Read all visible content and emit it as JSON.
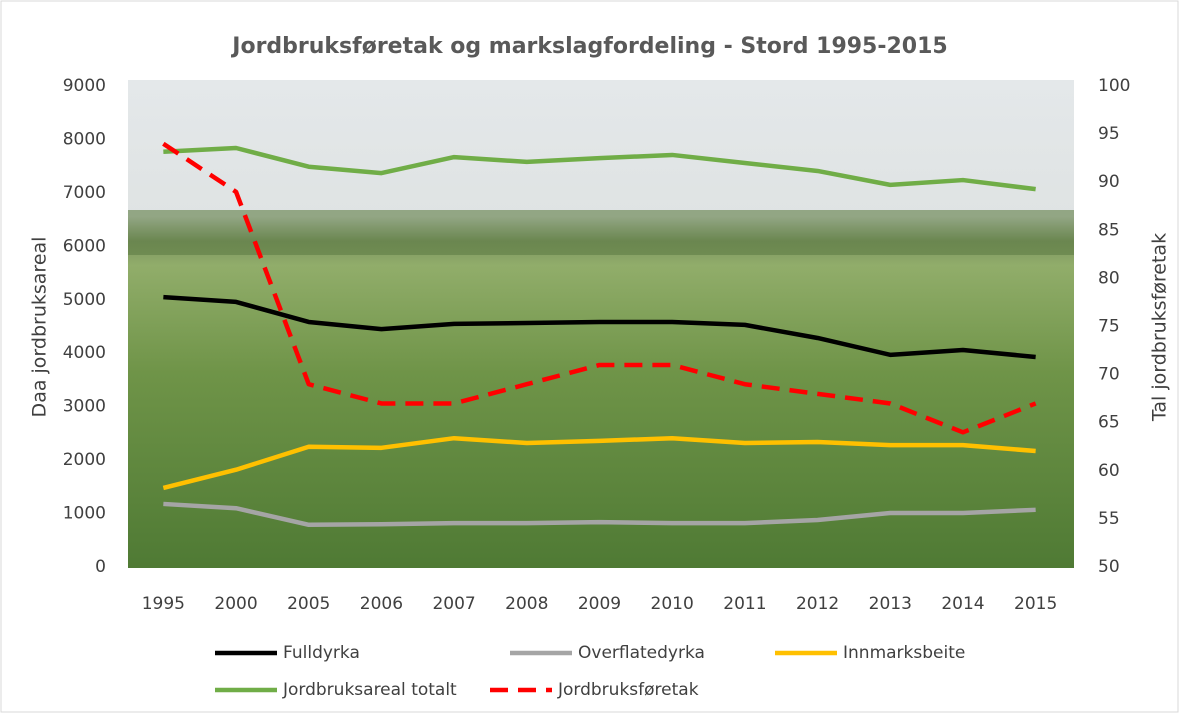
{
  "chart_data": {
    "type": "line",
    "title": "Jordbruksføretak og markslagfordeling - Stord 1995-2015",
    "y_label": "Daa jordbruksareal",
    "y2_label": "Tal jordbruksføretak",
    "categories": [
      "1995",
      "2000",
      "2005",
      "2006",
      "2007",
      "2008",
      "2009",
      "2010",
      "2011",
      "2012",
      "2013",
      "2014",
      "2015"
    ],
    "ylim": [
      0,
      9000
    ],
    "yticks": [
      0,
      1000,
      2000,
      3000,
      4000,
      5000,
      6000,
      7000,
      8000,
      9000
    ],
    "y2lim": [
      50,
      100
    ],
    "y2ticks": [
      50,
      55,
      60,
      65,
      70,
      75,
      80,
      85,
      90,
      95,
      100
    ],
    "legend": "bottom",
    "series": [
      {
        "name": "Fulldyrka",
        "color": "#000000",
        "values": [
          5050,
          4960,
          4585,
          4450,
          4550,
          4565,
          4585,
          4585,
          4530,
          4285,
          3970,
          4060,
          3930
        ]
      },
      {
        "name": "Overflatedyrka",
        "color": "#a5a5a5",
        "values": [
          1180,
          1100,
          790,
          800,
          820,
          820,
          840,
          820,
          820,
          880,
          1010,
          1010,
          1070
        ]
      },
      {
        "name": "Innmarksbeite",
        "color": "#ffc000",
        "values": [
          1480,
          1820,
          2250,
          2230,
          2410,
          2320,
          2360,
          2410,
          2320,
          2340,
          2280,
          2280,
          2170
        ]
      },
      {
        "name": "Jordbruksareal totalt",
        "color": "#70ad47",
        "values": [
          7770,
          7840,
          7490,
          7370,
          7670,
          7580,
          7650,
          7710,
          7560,
          7410,
          7150,
          7240,
          7070
        ]
      },
      {
        "name": "Jordbruksføretak",
        "color": "#ff0000",
        "axis": "y2",
        "dashed": true,
        "values": [
          94,
          89,
          69,
          67,
          67,
          69,
          71,
          71,
          69,
          68,
          67,
          64,
          67
        ]
      }
    ]
  }
}
